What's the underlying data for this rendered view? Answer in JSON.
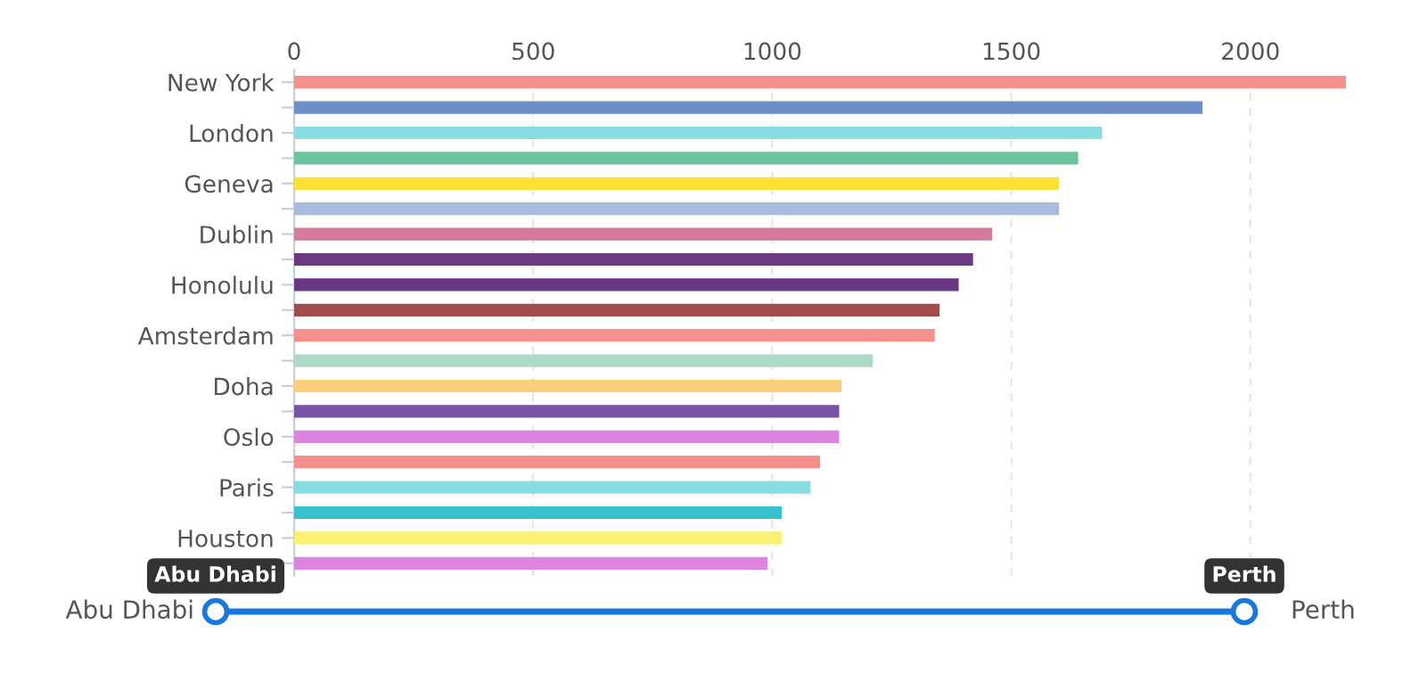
{
  "chart_data": {
    "type": "bar",
    "orientation": "horizontal",
    "categories": [
      "New York",
      null,
      "London",
      null,
      "Geneva",
      null,
      "Dublin",
      null,
      "Honolulu",
      null,
      "Amsterdam",
      null,
      "Doha",
      null,
      "Oslo",
      null,
      "Paris",
      null,
      "Houston",
      null
    ],
    "values": [
      2200,
      1900,
      1690,
      1640,
      1600,
      1600,
      1460,
      1420,
      1390,
      1350,
      1340,
      1210,
      1145,
      1140,
      1140,
      1100,
      1080,
      1020,
      1020,
      990
    ],
    "colors": [
      "#f5908d",
      "#6c8fc7",
      "#88dde3",
      "#6bc49b",
      "#fde134",
      "#a8bbdf",
      "#d47a9e",
      "#6d3a82",
      "#6a3784",
      "#a34b4b",
      "#f5908d",
      "#add9c7",
      "#fecf7a",
      "#7752a7",
      "#dc84e0",
      "#f5908d",
      "#88dde3",
      "#38c2d1",
      "#fbf06f",
      "#dc84e0"
    ],
    "xlim": [
      0,
      2200
    ],
    "xticks": [
      0,
      500,
      1000,
      1500,
      2000
    ],
    "grid": "x",
    "annotations": [
      "Abu Dhabi",
      "Perth"
    ]
  }
}
